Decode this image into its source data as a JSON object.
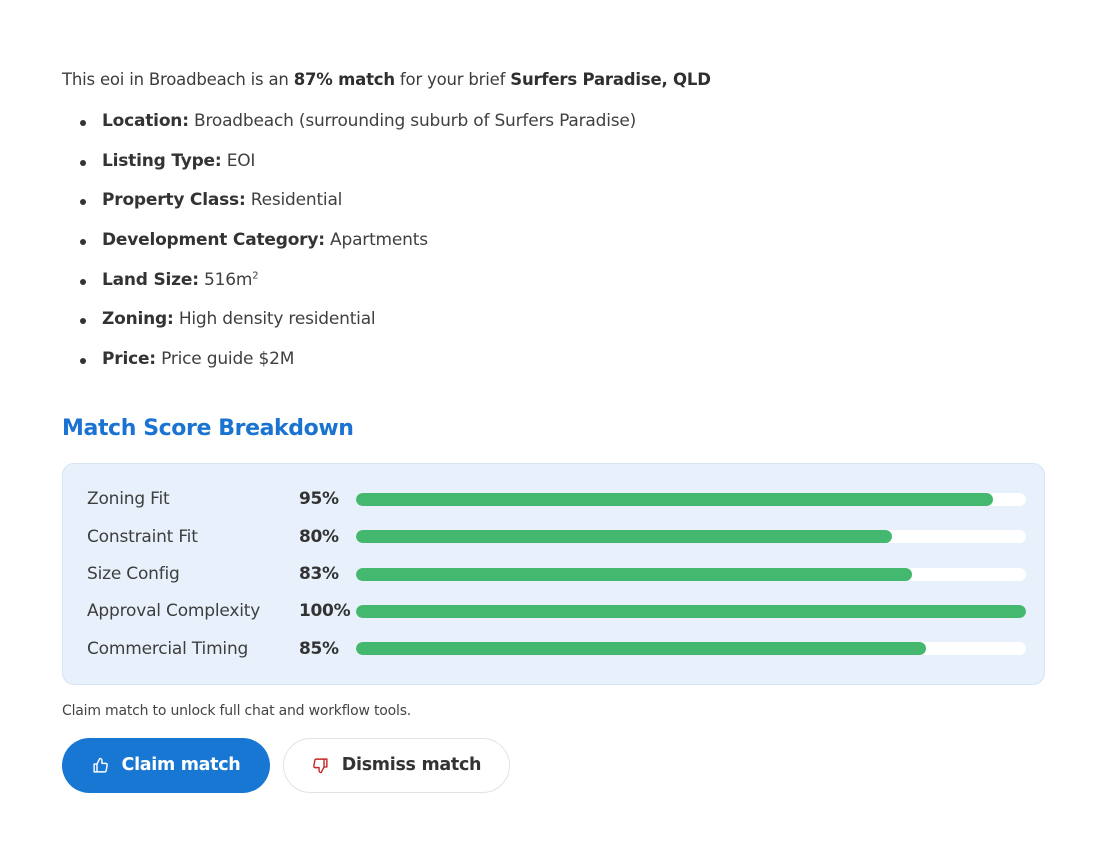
{
  "intro": {
    "prefix": "This eoi in Broadbeach is an ",
    "match_text": "87% match",
    "middle": " for your brief ",
    "brief_name": "Surfers Paradise, QLD"
  },
  "details": [
    {
      "label": "Location:",
      "value": " Broadbeach (surrounding suburb of Surfers Paradise)"
    },
    {
      "label": "Listing Type:",
      "value": " EOI"
    },
    {
      "label": "Property Class:",
      "value": " Residential"
    },
    {
      "label": "Development Category:",
      "value": " Apartments"
    },
    {
      "label": "Land Size:",
      "value": " 516m",
      "sup": "2"
    },
    {
      "label": "Zoning:",
      "value": " High density residential"
    },
    {
      "label": "Price:",
      "value": " Price guide $2M"
    }
  ],
  "breakdown": {
    "title": "Match Score Breakdown",
    "accent_color": "#1a73d1",
    "bar_color": "#45b870",
    "scores": [
      {
        "label": "Zoning Fit",
        "value_text": "95%",
        "value": 95
      },
      {
        "label": "Constraint Fit",
        "value_text": "80%",
        "value": 80
      },
      {
        "label": "Size Config",
        "value_text": "83%",
        "value": 83
      },
      {
        "label": "Approval Complexity",
        "value_text": "100%",
        "value": 100
      },
      {
        "label": "Commercial Timing",
        "value_text": "85%",
        "value": 85
      }
    ]
  },
  "note": "Claim match to unlock full chat and workflow tools.",
  "actions": {
    "claim": {
      "label": "Claim match",
      "icon": "thumbs-up-icon",
      "color": "#1877d2"
    },
    "dismiss": {
      "label": "Dismiss match",
      "icon": "thumbs-down-icon",
      "icon_color": "#c62828"
    }
  }
}
